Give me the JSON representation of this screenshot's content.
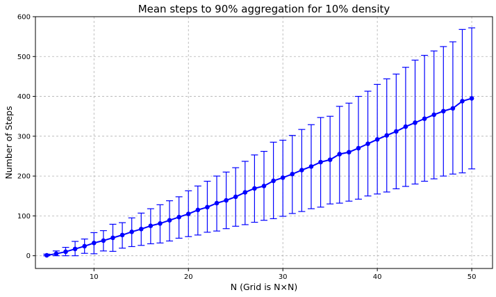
{
  "chart_data": {
    "type": "line",
    "title": "Mean steps to 90% aggregation for 10% density",
    "xlabel": "N (Grid is N×N)",
    "ylabel": "Number of Steps",
    "xlim": [
      3.8,
      52.2
    ],
    "ylim": [
      -32,
      600
    ],
    "xticks": [
      10,
      20,
      30,
      40,
      50
    ],
    "yticks": [
      0,
      100,
      200,
      300,
      400,
      500,
      600
    ],
    "grid": true,
    "color": "#0000ff",
    "marker": "circle",
    "series": [
      {
        "x": [
          5,
          6,
          7,
          8,
          9,
          10,
          11,
          12,
          13,
          14,
          15,
          16,
          17,
          18,
          19,
          20,
          21,
          22,
          23,
          24,
          25,
          26,
          27,
          28,
          29,
          30,
          31,
          32,
          33,
          34,
          35,
          36,
          37,
          38,
          39,
          40,
          41,
          42,
          43,
          44,
          45,
          46,
          47,
          48,
          49,
          50
        ],
        "values": [
          1,
          5,
          10,
          17,
          24,
          32,
          38,
          45,
          52,
          60,
          67,
          75,
          81,
          89,
          97,
          105,
          115,
          122,
          132,
          139,
          148,
          159,
          169,
          175,
          188,
          196,
          205,
          215,
          224,
          235,
          241,
          255,
          260,
          270,
          281,
          292,
          302,
          312,
          324,
          334,
          344,
          354,
          363,
          370,
          388,
          395
        ],
        "error_low": [
          0,
          0,
          0,
          0,
          6,
          5,
          12,
          11,
          19,
          23,
          26,
          30,
          32,
          37,
          44,
          48,
          52,
          59,
          62,
          68,
          74,
          78,
          84,
          89,
          93,
          99,
          106,
          111,
          118,
          122,
          130,
          132,
          137,
          142,
          150,
          155,
          160,
          168,
          174,
          180,
          187,
          193,
          200,
          205,
          208,
          218
        ],
        "error_high": [
          4,
          12,
          21,
          36,
          42,
          58,
          63,
          79,
          83,
          95,
          107,
          118,
          128,
          138,
          148,
          163,
          175,
          187,
          200,
          210,
          221,
          237,
          253,
          262,
          285,
          290,
          302,
          317,
          329,
          347,
          350,
          375,
          383,
          400,
          413,
          430,
          444,
          456,
          473,
          491,
          503,
          514,
          525,
          537,
          568,
          572
        ]
      }
    ]
  }
}
